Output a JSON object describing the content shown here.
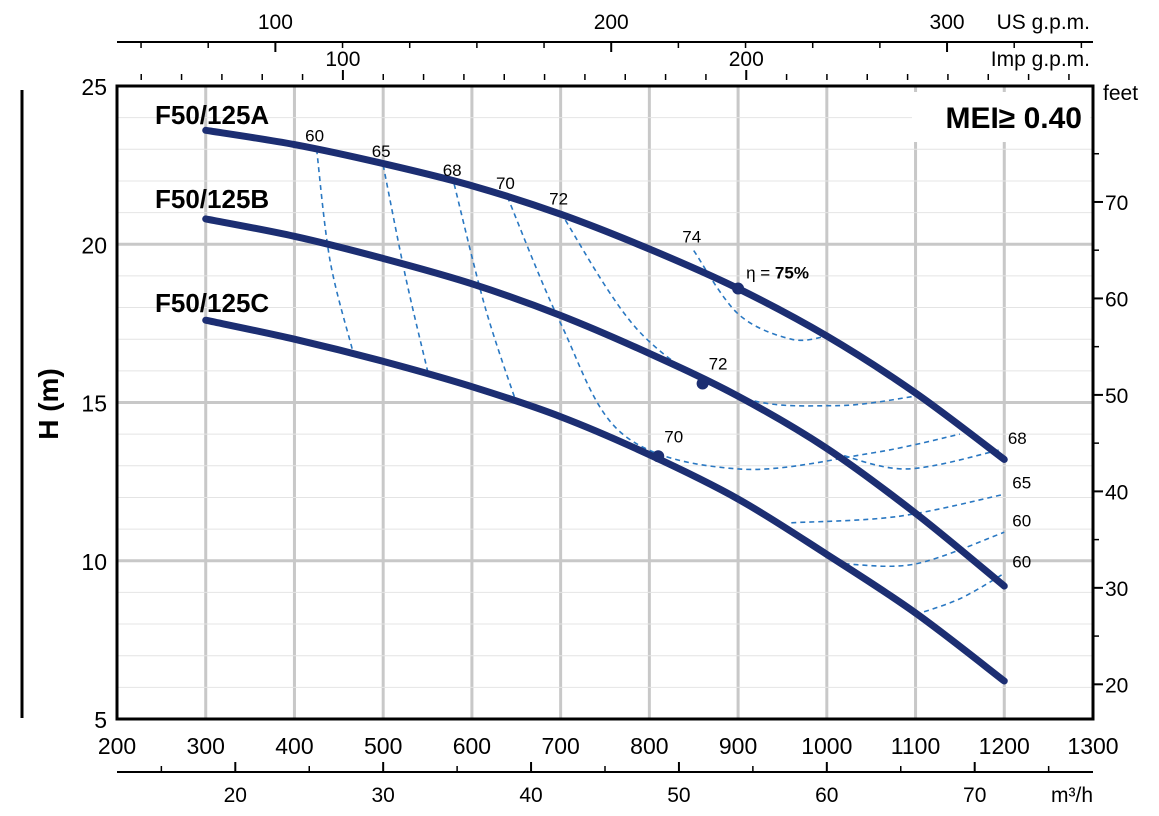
{
  "chart_data": {
    "type": "line",
    "xlabel": "m³/h",
    "ylabel": "H (m)",
    "y2label": "feet",
    "top_axis_us_label": "US g.p.m.",
    "top_axis_imp_label": "Imp g.p.m.",
    "mei_label": "MEI≥ 0.40",
    "eta_prefix": "η = ",
    "eta_best": "75%",
    "xlim": [
      200,
      1300
    ],
    "ylim": [
      5,
      25
    ],
    "x_ticks": [
      "200",
      "300",
      "400",
      "500",
      "600",
      "700",
      "800",
      "900",
      "1000",
      "1100",
      "1200",
      "1300"
    ],
    "y_ticks": [
      "5",
      "10",
      "15",
      "20",
      "25"
    ],
    "feet_ticks": [
      "20",
      "30",
      "40",
      "50",
      "60",
      "70"
    ],
    "m3h_ticks": [
      "20",
      "30",
      "40",
      "50",
      "60",
      "70"
    ],
    "us_gpm_ticks": [
      "100",
      "200",
      "300"
    ],
    "imp_gpm_ticks": [
      "100",
      "200"
    ],
    "grid": true,
    "series": [
      {
        "name": "F50/125A",
        "x": [
          300,
          400,
          500,
          600,
          700,
          800,
          900,
          1000,
          1100,
          1200
        ],
        "y": [
          23.6,
          23.15,
          22.55,
          21.85,
          20.95,
          19.85,
          18.6,
          17.1,
          15.3,
          13.2
        ]
      },
      {
        "name": "F50/125B",
        "x": [
          300,
          400,
          500,
          600,
          700,
          800,
          900,
          1000,
          1100,
          1200
        ],
        "y": [
          20.8,
          20.25,
          19.55,
          18.75,
          17.75,
          16.55,
          15.2,
          13.55,
          11.5,
          9.2
        ]
      },
      {
        "name": "F50/125C",
        "x": [
          300,
          400,
          500,
          600,
          700,
          800,
          900,
          1000,
          1100,
          1200
        ],
        "y": [
          17.6,
          17.0,
          16.3,
          15.5,
          14.55,
          13.35,
          11.95,
          10.2,
          8.35,
          6.2
        ]
      }
    ],
    "efficiency_contours": [
      {
        "label": "60",
        "side": "left",
        "points": [
          [
            425,
            23.0
          ],
          [
            440,
            19.5
          ],
          [
            465,
            16.7
          ]
        ]
      },
      {
        "label": "65",
        "side": "left",
        "points": [
          [
            500,
            22.5
          ],
          [
            525,
            19.0
          ],
          [
            550,
            16.0
          ]
        ]
      },
      {
        "label": "68",
        "side": "left",
        "points": [
          [
            580,
            21.9
          ],
          [
            615,
            18.0
          ],
          [
            650,
            15.0
          ]
        ]
      },
      {
        "label": "70",
        "side": "left",
        "points": [
          [
            640,
            21.5
          ],
          [
            700,
            17.5
          ],
          [
            770,
            14.0
          ],
          [
            900,
            12.9
          ],
          [
            1050,
            13.4
          ],
          [
            1150,
            14.0
          ]
        ]
      },
      {
        "label": "72",
        "side": "left",
        "points": [
          [
            700,
            21.0
          ],
          [
            790,
            17.2
          ],
          [
            900,
            15.2
          ],
          [
            1010,
            14.9
          ],
          [
            1100,
            15.2
          ]
        ]
      },
      {
        "label": "74",
        "side": "left",
        "points": [
          [
            850,
            19.8
          ],
          [
            900,
            17.8
          ],
          [
            960,
            17.0
          ],
          [
            1000,
            17.1
          ]
        ]
      },
      {
        "label": "68",
        "side": "right",
        "points": [
          [
            1010,
            13.4
          ],
          [
            1090,
            12.9
          ],
          [
            1195,
            13.5
          ]
        ]
      },
      {
        "label": "65",
        "side": "right",
        "points": [
          [
            960,
            11.2
          ],
          [
            1080,
            11.4
          ],
          [
            1200,
            12.1
          ]
        ]
      },
      {
        "label": "60",
        "side": "right",
        "points": [
          [
            1020,
            9.9
          ],
          [
            1100,
            9.9
          ],
          [
            1200,
            10.9
          ]
        ]
      },
      {
        "label": "60",
        "side": "right",
        "points": [
          [
            1100,
            8.3
          ],
          [
            1150,
            8.8
          ],
          [
            1200,
            9.6
          ]
        ]
      }
    ],
    "efficiency_points": [
      {
        "label": "75%",
        "x": 900,
        "y": 18.6
      },
      {
        "label": "74",
        "x": 1000,
        "y": 17.1
      },
      {
        "label": "72",
        "x": 1100,
        "y": 15.3
      },
      {
        "label": "70",
        "x": 1170,
        "y": 14.4
      },
      {
        "label": "68",
        "x": 1200,
        "y": 13.2
      },
      {
        "label": "72",
        "x": 860,
        "y": 15.6
      },
      {
        "label": "70",
        "x": 810,
        "y": 13.3
      }
    ],
    "colors": {
      "curve": "#1c2e72",
      "contour": "#2a78c2",
      "grid": "#c8c8c8"
    }
  }
}
